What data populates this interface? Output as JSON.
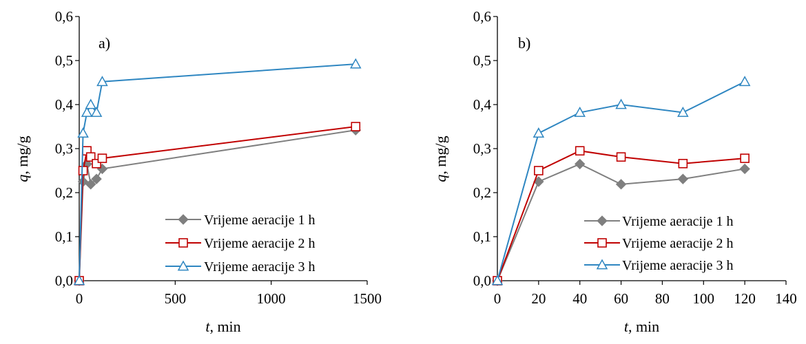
{
  "chart_data": [
    {
      "type": "line",
      "panel_label": "a)",
      "xlabel_var": "t",
      "xlabel_unit": ", min",
      "ylabel_var": "q",
      "ylabel_unit": ", mg/g",
      "xlim": [
        0,
        1500
      ],
      "ylim": [
        0,
        0.6
      ],
      "xticks": [
        0,
        500,
        1000,
        1500
      ],
      "xtick_labels": [
        "0",
        "500",
        "1000",
        "1500"
      ],
      "yticks": [
        0,
        0.1,
        0.2,
        0.3,
        0.4,
        0.5,
        0.6
      ],
      "ytick_labels": [
        "0,0",
        "0,1",
        "0,2",
        "0,3",
        "0,4",
        "0,5",
        "0,6"
      ],
      "legend_position": "bottom-right",
      "series": [
        {
          "name": "Vrijeme aeracije 1 h",
          "color": "#7f7f7f",
          "marker": "diamond",
          "x": [
            0,
            20,
            40,
            60,
            90,
            120,
            1440
          ],
          "y": [
            0,
            0.225,
            0.265,
            0.219,
            0.231,
            0.254,
            0.342
          ]
        },
        {
          "name": "Vrijeme aeracije 2 h",
          "color": "#c00000",
          "marker": "square",
          "x": [
            0,
            20,
            40,
            60,
            90,
            120,
            1440
          ],
          "y": [
            0,
            0.25,
            0.295,
            0.281,
            0.266,
            0.278,
            0.35
          ]
        },
        {
          "name": "Vrijeme aeracije 3 h",
          "color": "#2e86c1",
          "marker": "triangle",
          "x": [
            0,
            20,
            40,
            60,
            90,
            120,
            1440
          ],
          "y": [
            0,
            0.335,
            0.382,
            0.4,
            0.382,
            0.452,
            0.492
          ]
        }
      ]
    },
    {
      "type": "line",
      "panel_label": "b)",
      "xlabel_var": "t",
      "xlabel_unit": ", min",
      "ylabel_var": "q",
      "ylabel_unit": ", mg/g",
      "xlim": [
        0,
        140
      ],
      "ylim": [
        0,
        0.6
      ],
      "xticks": [
        0,
        20,
        40,
        60,
        80,
        100,
        120,
        140
      ],
      "xtick_labels": [
        "0",
        "20",
        "40",
        "60",
        "80",
        "100",
        "120",
        "140"
      ],
      "yticks": [
        0,
        0.1,
        0.2,
        0.3,
        0.4,
        0.5,
        0.6
      ],
      "ytick_labels": [
        "0,0",
        "0,1",
        "0,2",
        "0,3",
        "0,4",
        "0,5",
        "0,6"
      ],
      "legend_position": "bottom-right",
      "series": [
        {
          "name": "Vrijeme aeracije 1 h",
          "color": "#7f7f7f",
          "marker": "diamond",
          "x": [
            0,
            20,
            40,
            60,
            90,
            120
          ],
          "y": [
            0,
            0.225,
            0.265,
            0.219,
            0.231,
            0.254
          ]
        },
        {
          "name": "Vrijeme aeracije 2 h",
          "color": "#c00000",
          "marker": "square",
          "x": [
            0,
            20,
            40,
            60,
            90,
            120
          ],
          "y": [
            0,
            0.25,
            0.295,
            0.281,
            0.266,
            0.278
          ]
        },
        {
          "name": "Vrijeme aeracije 3 h",
          "color": "#2e86c1",
          "marker": "triangle",
          "x": [
            0,
            20,
            40,
            60,
            90,
            120
          ],
          "y": [
            0,
            0.335,
            0.382,
            0.4,
            0.382,
            0.452
          ]
        }
      ]
    }
  ]
}
